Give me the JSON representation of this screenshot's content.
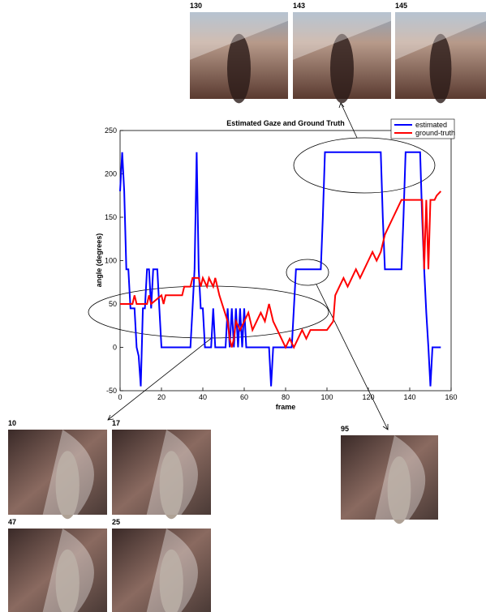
{
  "chart_data": {
    "type": "line",
    "title": "Estimated Gaze and Ground Truth",
    "x_label": "frame",
    "y_label": "angle (degrees)",
    "xlim": [
      0,
      160
    ],
    "ylim": [
      -50,
      250
    ],
    "xticks": [
      0,
      20,
      40,
      60,
      80,
      100,
      120,
      140,
      160
    ],
    "yticks": [
      -50,
      0,
      50,
      100,
      150,
      200,
      250
    ],
    "grid": false,
    "legend": "upper right",
    "series": [
      {
        "name": "estimated",
        "color": "#0000ff",
        "x": [
          0,
          1,
          2,
          3,
          4,
          5,
          7,
          8,
          9,
          10,
          11,
          12,
          13,
          14,
          15,
          16,
          18,
          19,
          20,
          34,
          35,
          36,
          37,
          38,
          39,
          40,
          41,
          44,
          45,
          46,
          51,
          52,
          53,
          54,
          55,
          56,
          57,
          58,
          59,
          60,
          61,
          72,
          73,
          74,
          83,
          84,
          85,
          97,
          98,
          99,
          126,
          127,
          128,
          136,
          137,
          138,
          145,
          146,
          147,
          148,
          149,
          150,
          151,
          155
        ],
        "values": [
          180,
          225,
          180,
          90,
          90,
          45,
          45,
          0,
          -10,
          -45,
          45,
          45,
          90,
          90,
          45,
          90,
          90,
          45,
          0,
          0,
          45,
          90,
          225,
          90,
          45,
          45,
          0,
          0,
          45,
          0,
          0,
          45,
          0,
          45,
          0,
          45,
          0,
          45,
          0,
          45,
          0,
          0,
          -45,
          0,
          0,
          45,
          90,
          90,
          150,
          225,
          225,
          150,
          90,
          90,
          150,
          225,
          225,
          150,
          90,
          40,
          0,
          -45,
          0,
          0
        ]
      },
      {
        "name": "ground-truth",
        "color": "#ff0000",
        "x": [
          0,
          6,
          7,
          8,
          13,
          14,
          15,
          20,
          21,
          22,
          30,
          31,
          34,
          35,
          38,
          39,
          40,
          42,
          43,
          45,
          46,
          47,
          48,
          50,
          52,
          53,
          54,
          55,
          56,
          58,
          60,
          62,
          64,
          66,
          68,
          70,
          72,
          74,
          76,
          78,
          80,
          82,
          84,
          86,
          88,
          90,
          92,
          100,
          103,
          104,
          106,
          108,
          110,
          112,
          114,
          116,
          118,
          120,
          122,
          124,
          126,
          128,
          130,
          132,
          134,
          136,
          140,
          146,
          147,
          148,
          149,
          150,
          152,
          153,
          155
        ],
        "values": [
          50,
          50,
          60,
          50,
          50,
          60,
          50,
          60,
          50,
          60,
          60,
          70,
          70,
          80,
          80,
          70,
          80,
          70,
          80,
          70,
          80,
          70,
          60,
          45,
          30,
          10,
          0,
          10,
          30,
          20,
          30,
          40,
          20,
          30,
          40,
          30,
          50,
          30,
          20,
          10,
          0,
          10,
          0,
          10,
          20,
          10,
          20,
          20,
          30,
          60,
          70,
          80,
          70,
          80,
          90,
          80,
          90,
          100,
          110,
          100,
          110,
          130,
          140,
          150,
          160,
          170,
          170,
          170,
          90,
          170,
          90,
          170,
          170,
          175,
          180
        ]
      }
    ]
  },
  "thumbnails": [
    {
      "label": "130"
    },
    {
      "label": "143"
    },
    {
      "label": "145"
    },
    {
      "label": "10"
    },
    {
      "label": "17"
    },
    {
      "label": "95"
    },
    {
      "label": "47"
    },
    {
      "label": "25"
    }
  ]
}
